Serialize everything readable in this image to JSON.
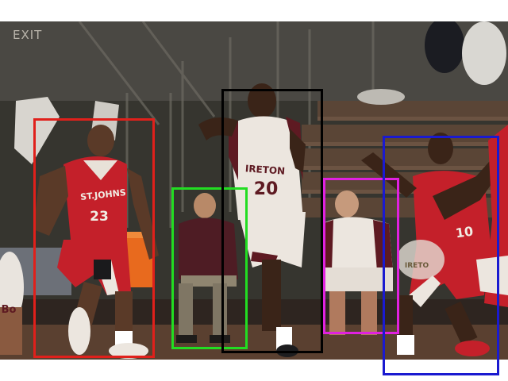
{
  "scene": {
    "exit_sign": "EXIT",
    "jerseys": {
      "red_player_team": "ST.JOHNS",
      "red_player_number": "23",
      "white_player_team": "IRETON",
      "white_player_number": "20",
      "right_player_number": "10",
      "left_edge_letters": "Bo",
      "bench_sign": "IRETO"
    }
  },
  "annotations": [
    {
      "label_color": "#e0201b",
      "subject": "player-red-23"
    },
    {
      "label_color": "#22dd22",
      "subject": "spectator-seated"
    },
    {
      "label_color": "#000000",
      "subject": "player-white-20"
    },
    {
      "label_color": "#e021e0",
      "subject": "bench-player"
    },
    {
      "label_color": "#1a1ad0",
      "subject": "player-red-10"
    }
  ],
  "colors": {
    "court_wall": "#3b3a36",
    "floor": "#5a4030",
    "red_jersey": "#c4202a",
    "white_jersey": "#ece6df",
    "maroon_jersey": "#5e1a22"
  }
}
